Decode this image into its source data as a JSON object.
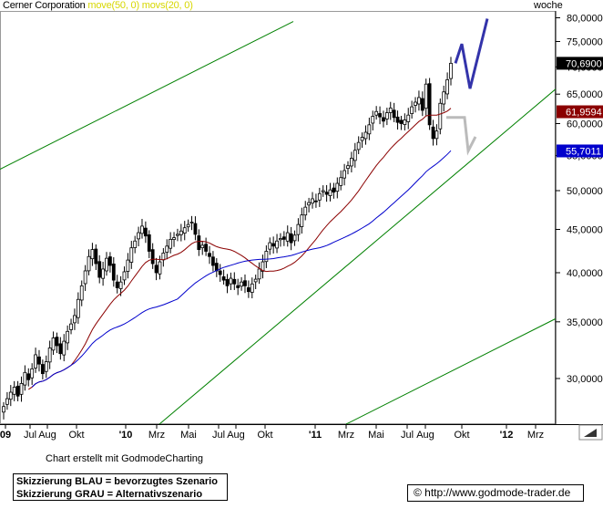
{
  "header": {
    "title": "Cerner Corporation",
    "indicator_sma": "move(50, 0)",
    "indicator_ema": "movs(20, 0)",
    "period": "woche"
  },
  "footer": {
    "credit": "Chart erstellt mit GodmodeCharting",
    "legend_blue": "Skizzierung BLAU = bevorzugtes Szenario",
    "legend_gray": "Skizzierung GRAU = Alternativszenario",
    "copyright": "© http://www.godmode-trader.de"
  },
  "colors": {
    "up_candle": "#ffffff",
    "down_candle": "#000000",
    "ma_short": "#8b0000",
    "ma_long": "#0000cc",
    "channel": "#008000",
    "scenario_blue": "#3333aa",
    "scenario_gray": "#bbbbbb",
    "last_price_tag": "#000000",
    "ma_short_tag": "#8b0000",
    "ma_long_tag": "#0000cc"
  },
  "chart_data": {
    "type": "candlestick",
    "title": "Cerner Corporation",
    "y_scale": "log",
    "ylim": [
      26.5,
      81.5
    ],
    "y_ticks": [
      "30,0000",
      "35,0000",
      "40,0000",
      "45,0000",
      "50,0000",
      "55,0000",
      "60,0000",
      "65,0000",
      "70,0000",
      "75,0000",
      "80,0000"
    ],
    "x_ticks": [
      "09",
      "Jul",
      "Aug",
      "Okt",
      "'10",
      "Mrz",
      "Mai",
      "Jul",
      "Aug",
      "Okt",
      "'11",
      "Mrz",
      "Mai",
      "Jul",
      "Aug",
      "Okt",
      "'12",
      "Mrz"
    ],
    "price_tags": {
      "last": "70,6900",
      "ma_short": "61,9594",
      "ma_long": "55,7011"
    },
    "closes": [
      27.8,
      28.4,
      28.9,
      29.3,
      28.6,
      29.6,
      30.5,
      29.9,
      30.8,
      32.0,
      31.2,
      30.4,
      31.4,
      32.6,
      33.5,
      32.8,
      32.1,
      33.2,
      34.1,
      34.8,
      35.6,
      37.2,
      38.6,
      40.2,
      41.8,
      42.6,
      41.0,
      39.5,
      40.4,
      41.6,
      40.8,
      39.2,
      38.4,
      39.0,
      40.1,
      41.4,
      42.8,
      43.6,
      44.6,
      45.4,
      44.2,
      42.4,
      41.0,
      40.0,
      41.2,
      42.2,
      43.0,
      43.8,
      44.0,
      44.4,
      44.8,
      45.2,
      45.6,
      45.9,
      44.4,
      42.6,
      43.1,
      42.4,
      41.8,
      40.8,
      40.2,
      39.8,
      39.2,
      38.6,
      39.4,
      38.8,
      38.4,
      39.0,
      38.6,
      38.0,
      38.8,
      39.3,
      40.4,
      41.2,
      42.4,
      43.4,
      43.0,
      43.6,
      43.9,
      43.8,
      44.6,
      43.4,
      44.3,
      45.6,
      46.8,
      47.8,
      48.4,
      48.9,
      48.6,
      49.6,
      50.0,
      49.5,
      50.1,
      49.8,
      51.0,
      51.8,
      52.8,
      53.5,
      54.6,
      55.8,
      57.0,
      57.8,
      58.6,
      59.8,
      61.2,
      62.0,
      61.1,
      60.4,
      61.8,
      62.6,
      61.0,
      60.2,
      60.0,
      60.6,
      61.4,
      62.8,
      63.6,
      64.4,
      62.2,
      66.8,
      59.8,
      57.6,
      58.8,
      63.4,
      65.4,
      67.6,
      70.69
    ]
  },
  "scenarios": {
    "blue": "bevorzugtes Szenario",
    "gray": "Alternativszenario"
  }
}
